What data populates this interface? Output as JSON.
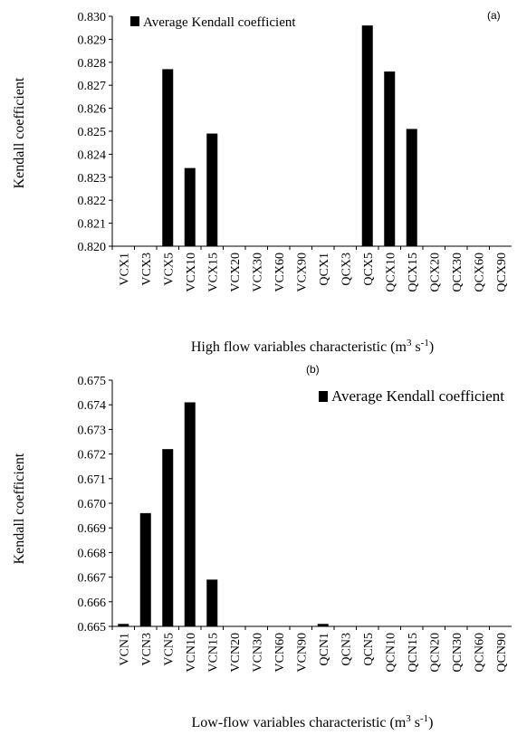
{
  "chart_data": [
    {
      "type": "bar",
      "panel_label": "(a)",
      "legend_label": "Average Kendall coefficient",
      "legend_position": "top-left",
      "ylabel": "Kendall coefficient",
      "xlabel": "High flow variables characteristic (m",
      "xlabel_sup": "3",
      "xlabel_mid": " s",
      "xlabel_sup2": "-1",
      "xlabel_end": ")",
      "ylim": [
        0.82,
        0.83
      ],
      "yticks": [
        "0.830",
        "0.829",
        "0.828",
        "0.827",
        "0.826",
        "0.825",
        "0.824",
        "0.823",
        "0.822",
        "0.821",
        "0.820"
      ],
      "bar_color": "#000000",
      "categories": [
        "VCX1",
        "VCX3",
        "VCX5",
        "VCX10",
        "VCX15",
        "VCX20",
        "VCX30",
        "VCX60",
        "VCX90",
        "QCX1",
        "QCX3",
        "QCX5",
        "QCX10",
        "QCX15",
        "QCX20",
        "QCX30",
        "QCX60",
        "QCX90"
      ],
      "values": [
        0.82,
        0.82,
        0.8277,
        0.8234,
        0.8249,
        0.82,
        0.82,
        0.82,
        0.82,
        0.82,
        0.82,
        0.8296,
        0.8276,
        0.8251,
        0.82,
        0.82,
        0.82,
        0.82
      ]
    },
    {
      "type": "bar",
      "panel_label": "(b)",
      "legend_label": "Average Kendall coefficient",
      "legend_position": "top-right",
      "ylabel": "Kendall coefficient",
      "xlabel": "Low-flow variables characteristic (m",
      "xlabel_sup": "3",
      "xlabel_mid": " s",
      "xlabel_sup2": "-1",
      "xlabel_end": ")",
      "ylim": [
        0.665,
        0.675
      ],
      "yticks": [
        "0.675",
        "0.674",
        "0.673",
        "0.672",
        "0.671",
        "0.670",
        "0.669",
        "0.668",
        "0.667",
        "0.666",
        "0.665"
      ],
      "bar_color": "#000000",
      "categories": [
        "VCN1",
        "VCN3",
        "VCN5",
        "VCN10",
        "VCN15",
        "VCN20",
        "VCN30",
        "VCN60",
        "VCN90",
        "QCN1",
        "QCN3",
        "QCN5",
        "QCN10",
        "QCN15",
        "QCN20",
        "QCN30",
        "QCN60",
        "QCN90"
      ],
      "values": [
        0.6651,
        0.6696,
        0.6722,
        0.6741,
        0.6669,
        0.665,
        0.665,
        0.665,
        0.665,
        0.6651,
        0.665,
        0.665,
        0.665,
        0.665,
        0.665,
        0.665,
        0.665,
        0.665
      ]
    }
  ]
}
